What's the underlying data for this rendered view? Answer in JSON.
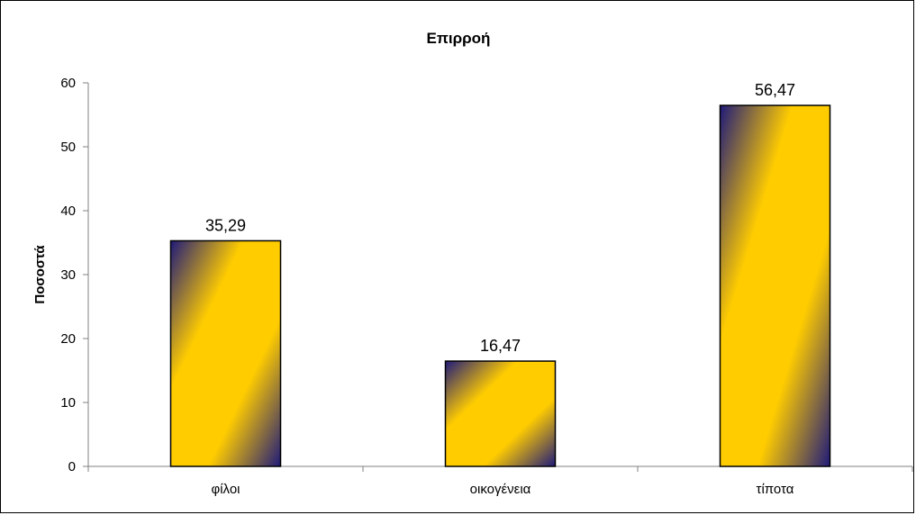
{
  "chart_data": {
    "type": "bar",
    "title": "Επιρροή",
    "xlabel": "",
    "ylabel": "Ποσοστά",
    "categories": [
      "φίλοι",
      "οικογένεια",
      "τίποτα"
    ],
    "values": [
      35.29,
      16.47,
      56.47
    ],
    "value_labels": [
      "35,29",
      "16,47",
      "56,47"
    ],
    "ylim": [
      0,
      60
    ],
    "yticks": [
      0,
      10,
      20,
      30,
      40,
      50,
      60
    ],
    "grid": false,
    "legend": "none",
    "colors": {
      "bar_fill_main": "#FFCC00",
      "bar_fill_edge": "#1F1A7A",
      "bar_border": "#000000",
      "axis": "#808080"
    }
  }
}
